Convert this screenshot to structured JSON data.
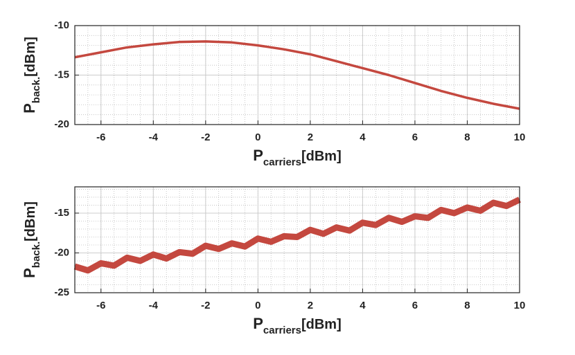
{
  "chart_data": [
    {
      "type": "line",
      "x": [
        -7,
        -6,
        -5,
        -4,
        -3,
        -2,
        -1,
        0,
        1,
        2,
        3,
        4,
        5,
        6,
        7,
        8,
        9,
        10
      ],
      "series": [
        {
          "color": "#c4483f",
          "values": [
            -13.2,
            -12.7,
            -12.2,
            -11.9,
            -11.65,
            -11.6,
            -11.7,
            -12.0,
            -12.4,
            -12.9,
            -13.6,
            -14.3,
            -15.0,
            -15.8,
            -16.6,
            -17.3,
            -17.9,
            -18.4
          ]
        }
      ],
      "xlim": [
        -7,
        10
      ],
      "xticks": [
        -6,
        -4,
        -2,
        0,
        2,
        4,
        6,
        8,
        10
      ],
      "ylim": [
        -20,
        -10
      ],
      "yticks": [
        -20,
        -15,
        -10
      ],
      "xlabel": {
        "symbol": "P",
        "subscript": "carriers",
        "unit": "[dBm]"
      },
      "ylabel": {
        "symbol": "P",
        "subscript": "back.",
        "unit": "[dBm]"
      },
      "grid": true,
      "minor_grid": true,
      "line_width": 3.5
    },
    {
      "type": "line",
      "x": [
        -7,
        -6.5,
        -6,
        -5.5,
        -5,
        -4.5,
        -4,
        -3.5,
        -3,
        -2.5,
        -2,
        -1.5,
        -1,
        -0.5,
        0,
        0.5,
        1,
        1.5,
        2,
        2.5,
        3,
        3.5,
        4,
        4.5,
        5,
        5.5,
        6,
        6.5,
        7,
        7.5,
        8,
        8.5,
        9,
        9.5,
        10
      ],
      "series": [
        {
          "color": "#c4483f",
          "values": [
            -21.7,
            -22.2,
            -21.3,
            -21.6,
            -20.6,
            -21.0,
            -20.2,
            -20.7,
            -19.9,
            -20.1,
            -19.1,
            -19.5,
            -18.8,
            -19.2,
            -18.2,
            -18.6,
            -17.9,
            -18.0,
            -17.1,
            -17.6,
            -16.8,
            -17.2,
            -16.2,
            -16.5,
            -15.6,
            -16.1,
            -15.4,
            -15.6,
            -14.6,
            -15.0,
            -14.3,
            -14.7,
            -13.7,
            -14.1,
            -13.3
          ]
        }
      ],
      "xlim": [
        -7,
        10
      ],
      "xticks": [
        -6,
        -4,
        -2,
        0,
        2,
        4,
        6,
        8,
        10
      ],
      "ylim": [
        -25,
        -11.7
      ],
      "yticks": [
        -25,
        -20,
        -15
      ],
      "xlabel": {
        "symbol": "P",
        "subscript": "carriers",
        "unit": "[dBm]"
      },
      "ylabel": {
        "symbol": "P",
        "subscript": "back.",
        "unit": "[dBm]"
      },
      "grid": true,
      "minor_grid": true,
      "line_width": 9
    }
  ]
}
